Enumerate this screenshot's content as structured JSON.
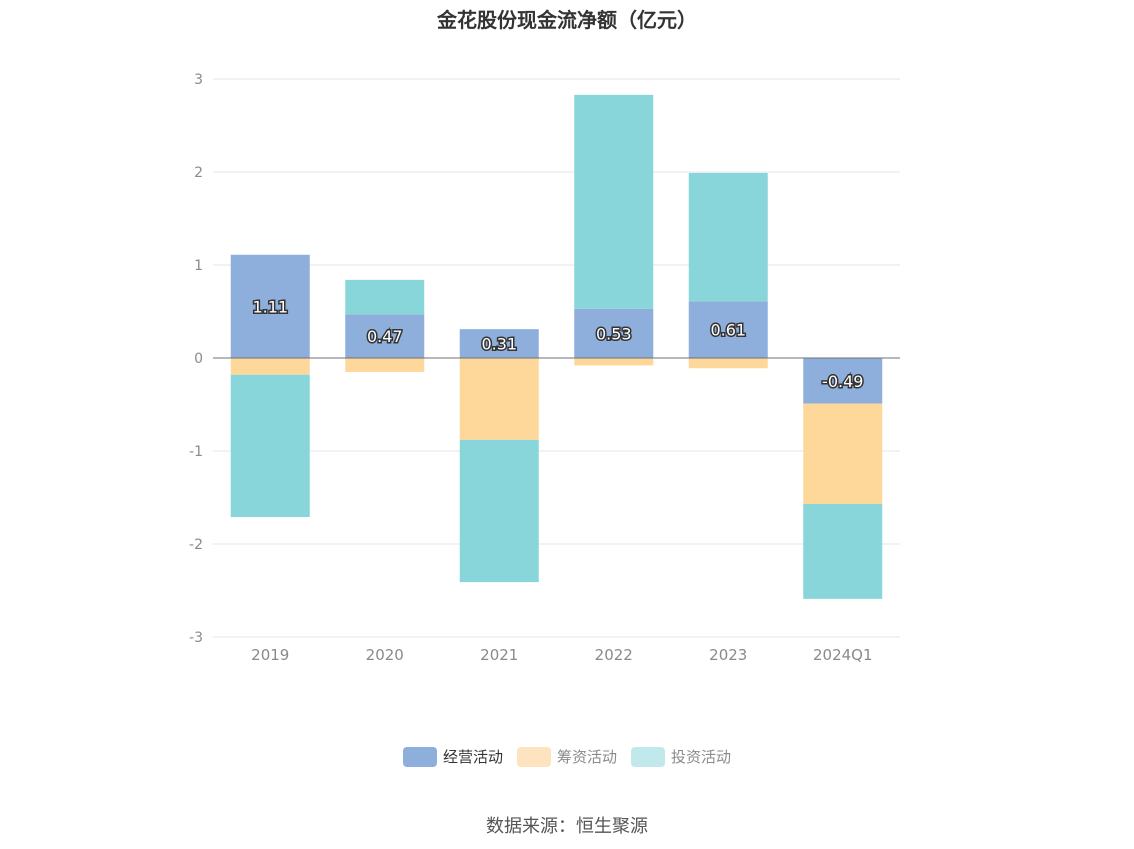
{
  "title": "金花股份现金流净额（亿元）",
  "source": "数据来源：恒生聚源",
  "chart_data": {
    "type": "bar",
    "stacked": true,
    "categories": [
      "2019",
      "2020",
      "2021",
      "2022",
      "2023",
      "2024Q1"
    ],
    "ylim": [
      -3,
      3
    ],
    "yticks": [
      "3",
      "2",
      "1",
      "0",
      "-1",
      "-2",
      "-3"
    ],
    "grid": true,
    "legend_position": "bottom",
    "series": [
      {
        "name": "经营活动",
        "color": "#8eaedc",
        "values": [
          1.11,
          0.47,
          0.31,
          0.53,
          0.61,
          -0.49
        ],
        "labels": [
          "1.11",
          "0.47",
          "0.31",
          "0.53",
          "0.61",
          "-0.49"
        ]
      },
      {
        "name": "筹资活动",
        "color": "#fed89b",
        "values": [
          -0.18,
          -0.15,
          -0.88,
          -0.08,
          -0.11,
          -1.08
        ]
      },
      {
        "name": "投资活动",
        "color": "#88d6da",
        "values": [
          -1.53,
          0.37,
          -1.53,
          2.3,
          1.38,
          -1.02
        ]
      }
    ]
  },
  "legend": {
    "items": [
      {
        "label": "经营活动",
        "color": "#8eaedc"
      },
      {
        "label": "筹资活动",
        "color": "#fde3c0"
      },
      {
        "label": "投资活动",
        "color": "#c1e9eb"
      }
    ]
  }
}
